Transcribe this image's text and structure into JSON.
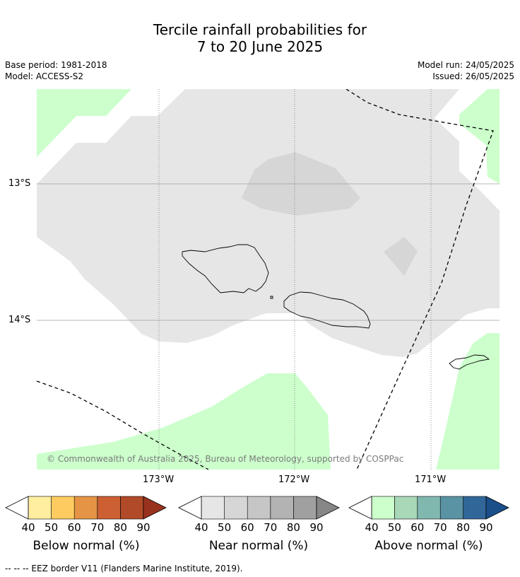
{
  "title_line1": "Tercile rainfall probabilities for",
  "title_line2": "7 to 20 June 2025",
  "base_period": "Base period: 1981-2018",
  "model": "Model: ACCESS-S2",
  "model_run": "Model run: 24/05/2025",
  "issued": "Issued: 26/05/2025",
  "lat_labels": [
    "13°S",
    "14°S"
  ],
  "lon_labels": [
    "173°W",
    "172°W",
    "171°W"
  ],
  "copyright": "© Commonwealth of Australia 2025, Bureau of Meteorology, supported by COSPPac",
  "colorbars": [
    {
      "name": "below",
      "title": "Below normal (%)",
      "ticks": [
        "40",
        "50",
        "60",
        "70",
        "80",
        "90"
      ],
      "colors": [
        "#ffeea0",
        "#fecb60",
        "#e49444",
        "#cc6033",
        "#b14a28",
        "#98321e"
      ]
    },
    {
      "name": "near",
      "title": "Near normal (%)",
      "ticks": [
        "40",
        "50",
        "60",
        "70",
        "80",
        "90"
      ],
      "colors": [
        "#e6e6e6",
        "#d6d6d6",
        "#c6c6c6",
        "#b3b3b3",
        "#a0a0a0",
        "#878787"
      ]
    },
    {
      "name": "above",
      "title": "Above normal (%)",
      "ticks": [
        "40",
        "50",
        "60",
        "70",
        "80",
        "90"
      ],
      "colors": [
        "#ccffcc",
        "#a8d8b8",
        "#80b8b0",
        "#5a93a3",
        "#316698",
        "#1b4f8a"
      ]
    }
  ],
  "eez_note": "--  --  -- EEZ border V11 (Flanders Marine Institute, 2019)."
}
